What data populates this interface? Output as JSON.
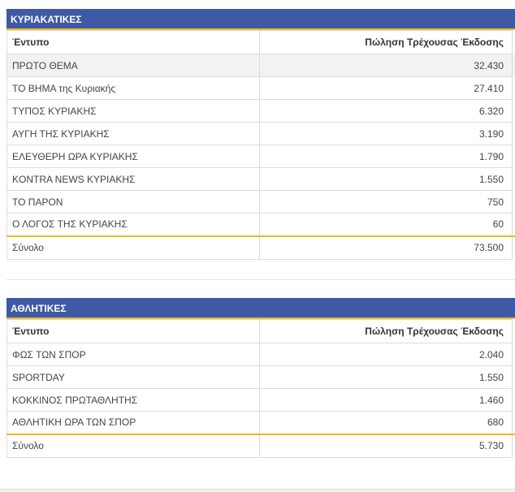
{
  "sections": [
    {
      "title": "ΚΥΡΙΑΚΑΤΙΚΕΣ",
      "col_name": "Έντυπο",
      "col_sales": "Πώληση Τρέχουσας Έκδοσης",
      "rows": [
        {
          "name": "ΠΡΩΤΟ ΘΕΜΑ",
          "sales": "32.430"
        },
        {
          "name": "ΤΟ ΒΗΜΑ της Κυριακής",
          "sales": "27.410"
        },
        {
          "name": "ΤΥΠΟΣ ΚΥΡΙΑΚΗΣ",
          "sales": "6.320"
        },
        {
          "name": "ΑΥΓΗ ΤΗΣ ΚΥΡΙΑΚΗΣ",
          "sales": "3.190"
        },
        {
          "name": "ΕΛΕΥΘΕΡΗ ΩΡΑ ΚΥΡΙΑΚΗΣ",
          "sales": "1.790"
        },
        {
          "name": "KONTRA NEWS ΚΥΡΙΑΚΗΣ",
          "sales": "1.550"
        },
        {
          "name": "ΤΟ ΠΑΡΟΝ",
          "sales": "750"
        },
        {
          "name": "Ο ΛΟΓΟΣ ΤΗΣ ΚΥΡΙΑΚΗΣ",
          "sales": "60"
        }
      ],
      "total_label": "Σύνολο",
      "total_value": "73.500"
    },
    {
      "title": "ΑΘΛΗΤΙΚΕΣ",
      "col_name": "Έντυπο",
      "col_sales": "Πώληση Τρέχουσας Έκδοσης",
      "rows": [
        {
          "name": "ΦΩΣ ΤΩΝ ΣΠΟΡ",
          "sales": "2.040"
        },
        {
          "name": "SPORTDAY",
          "sales": "1.550"
        },
        {
          "name": "ΚΟΚΚΙΝΟΣ ΠΡΩΤΑΘΛΗΤΗΣ",
          "sales": "1.460"
        },
        {
          "name": "ΑΘΛΗΤΙΚΗ ΩΡΑ ΤΩΝ ΣΠΟΡ",
          "sales": "680"
        }
      ],
      "total_label": "Σύνολο",
      "total_value": "5.730"
    }
  ]
}
